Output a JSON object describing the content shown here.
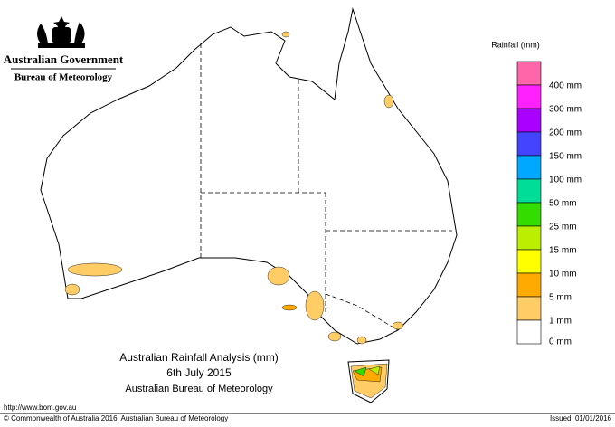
{
  "header": {
    "government": "Australian Government",
    "agency": "Bureau of Meteorology"
  },
  "legend": {
    "title": "Rainfall (mm)",
    "items": [
      {
        "color": "#ff66aa",
        "label": null
      },
      {
        "color": "#ff22ff",
        "label": "400 mm"
      },
      {
        "color": "#aa00ff",
        "label": "300 mm"
      },
      {
        "color": "#4444ff",
        "label": "200 mm"
      },
      {
        "color": "#00a8ff",
        "label": "150 mm"
      },
      {
        "color": "#00dd99",
        "label": "100 mm"
      },
      {
        "color": "#33dd00",
        "label": "50 mm"
      },
      {
        "color": "#bbee00",
        "label": "25 mm"
      },
      {
        "color": "#ffff00",
        "label": "15 mm"
      },
      {
        "color": "#ffaa00",
        "label": "10 mm"
      },
      {
        "color": "#ffcc66",
        "label": "5 mm"
      },
      {
        "color": "#ffffff",
        "label": "1 mm"
      }
    ],
    "bottom_label": "0 mm"
  },
  "title": {
    "line1": "Australian Rainfall Analysis (mm)",
    "line2": "6th July 2015",
    "line3": "Australian Bureau of Meteorology"
  },
  "footer": {
    "url": "http://www.bom.gov.au",
    "copyright": "© Commonwealth of Australia 2016, Australian Bureau of Meteorology",
    "issued": "Issued: 01/01/2016"
  }
}
